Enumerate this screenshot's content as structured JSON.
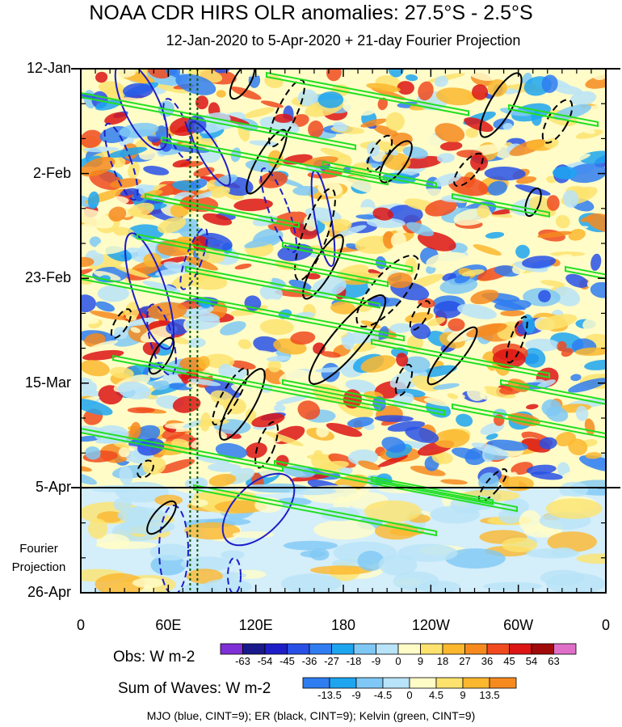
{
  "title": "NOAA CDR HIRS OLR anomalies: 27.5°S - 2.5°S",
  "subtitle": "12-Jan-2020 to 5-Apr-2020 + 21-day Fourier Projection",
  "chart_data": {
    "type": "heatmap",
    "x_tick_labels": [
      "0",
      "60E",
      "120E",
      "180",
      "120W",
      "60W",
      "0"
    ],
    "x_range_deg_east": [
      0,
      360
    ],
    "y_tick_labels": [
      "12-Jan",
      "2-Feb",
      "23-Feb",
      "15-Mar",
      "5-Apr",
      "26-Apr"
    ],
    "y_range": [
      "12-Jan-2020",
      "26-Apr-2020"
    ],
    "observed_end": "5-Apr-2020",
    "projection_label": "Fourier\nProjection",
    "reference_lines_deg_east": [
      75,
      80
    ],
    "obs_legend": {
      "title": "Obs: W m-2",
      "levels": [
        "-63",
        "-54",
        "-45",
        "-36",
        "-27",
        "-18",
        "-9",
        "0",
        "9",
        "18",
        "27",
        "36",
        "45",
        "54",
        "63"
      ],
      "colors": [
        "#7f2fd6",
        "#19198c",
        "#1e1ec8",
        "#2850e6",
        "#2f7df0",
        "#1ea5f0",
        "#7fc8f5",
        "#b8e3f8",
        "#fffcc8",
        "#fde36e",
        "#fbb72e",
        "#f68a1f",
        "#f04a1e",
        "#dc1414",
        "#a00a0a",
        "#e06fc8"
      ]
    },
    "waves_legend": {
      "title": "Sum of Waves: W m-2",
      "levels": [
        "-13.5",
        "-9",
        "-4.5",
        "0",
        "4.5",
        "9",
        "13.5"
      ],
      "colors": [
        "#2f7df0",
        "#1ea5f0",
        "#7fc8f5",
        "#b8e3f8",
        "#fffcc8",
        "#fde36e",
        "#fbb72e",
        "#f68a1f"
      ]
    },
    "contour_series": [
      {
        "name": "MJO",
        "color": "#1e1ec8",
        "cint": 9
      },
      {
        "name": "ER",
        "color": "#000000",
        "cint": 9
      },
      {
        "name": "Kelvin",
        "color": "#22e022",
        "cint": 9
      }
    ]
  },
  "footer": "MJO (blue, CINT=9); ER (black, CINT=9); Kelvin (green, CINT=9)"
}
